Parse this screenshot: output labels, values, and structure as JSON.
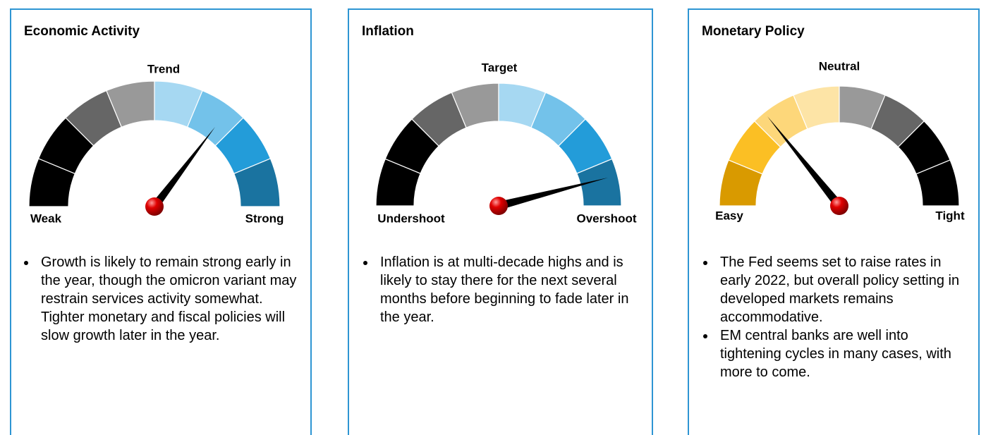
{
  "panels": [
    {
      "title": "Economic Activity",
      "gauge": {
        "top": "Trend",
        "left": "Weak",
        "right": "Strong"
      },
      "bullets": [
        "Growth is likely to remain strong early in the year, though the omicron variant may restrain services activity somewhat. Tighter monetary and fiscal policies will slow growth later in the year."
      ]
    },
    {
      "title": "Inflation",
      "gauge": {
        "top": "Target",
        "left": "Undershoot",
        "right": "Overshoot"
      },
      "bullets": [
        "Inflation is at multi-decade highs and is likely to stay there for the next several months before beginning to fade later in the year."
      ]
    },
    {
      "title": "Monetary Policy",
      "gauge": {
        "top": "Neutral",
        "left": "Easy",
        "right": "Tight"
      },
      "bullets": [
        "The Fed seems set to raise rates in early 2022, but overall policy setting in developed markets remains accommodative.",
        "EM central banks are well into tightening cycles in many cases, with more to come."
      ]
    }
  ]
}
